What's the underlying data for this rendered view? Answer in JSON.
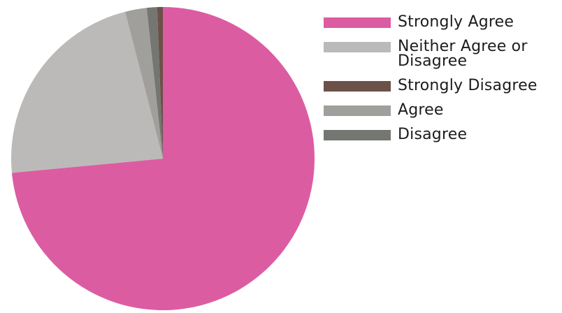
{
  "chart_data": {
    "type": "pie",
    "start_angle_deg": 0,
    "direction": "clockwise",
    "slices": [
      {
        "label": "Strongly Agree",
        "value": 73.5,
        "color": "#DC5CA2"
      },
      {
        "label": "Neither Agree or Disagree",
        "value": 22.5,
        "color": "#BBBAB8"
      },
      {
        "label": "Agree",
        "value": 2.3,
        "color": "#A09F9B"
      },
      {
        "label": "Disagree",
        "value": 1.1,
        "color": "#747671"
      },
      {
        "label": "Strongly Disagree",
        "value": 0.6,
        "color": "#6B5148"
      }
    ],
    "legend": {
      "position": "right",
      "items": [
        {
          "label": "Strongly Agree",
          "color": "#DC5CA2"
        },
        {
          "label": "Neither Agree or Disagree",
          "color": "#BBBAB8"
        },
        {
          "label": "Strongly Disagree",
          "color": "#6B5148"
        },
        {
          "label": "Agree",
          "color": "#A09F9B"
        },
        {
          "label": "Disagree",
          "color": "#747671"
        }
      ]
    }
  }
}
